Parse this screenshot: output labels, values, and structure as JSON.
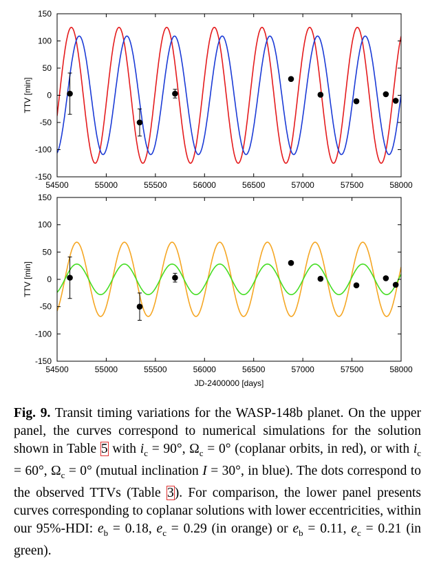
{
  "chart_data": [
    {
      "type": "line",
      "panel": "upper",
      "xlabel": "",
      "ylabel": "TTV [min]",
      "xlim": [
        54500,
        58000
      ],
      "ylim": [
        -150,
        150
      ],
      "xticks": [
        54500,
        55000,
        55500,
        56000,
        56500,
        57000,
        57500,
        58000
      ],
      "yticks": [
        -150,
        -100,
        -50,
        0,
        50,
        100,
        150
      ],
      "series": [
        {
          "name": "",
          "color": "#e41a1c",
          "model": {
            "amplitude": 125,
            "period": 485,
            "peak_x": 54645
          }
        },
        {
          "name": "",
          "color": "#1a3ad6",
          "model": {
            "amplitude": 109,
            "period": 485,
            "peak_x": 54725
          }
        }
      ],
      "points": [
        {
          "x": 54630,
          "y": 3,
          "err": 38
        },
        {
          "x": 55340,
          "y": -50,
          "err": 25
        },
        {
          "x": 55700,
          "y": 3,
          "err": 8
        },
        {
          "x": 56880,
          "y": 30,
          "err": 0
        },
        {
          "x": 57180,
          "y": 1,
          "err": 0
        },
        {
          "x": 57545,
          "y": -11,
          "err": 0
        },
        {
          "x": 57845,
          "y": 2,
          "err": 0
        },
        {
          "x": 57945,
          "y": -10,
          "err": 0
        }
      ]
    },
    {
      "type": "line",
      "panel": "lower",
      "xlabel": "JD-2400000 [days]",
      "ylabel": "TTV [min]",
      "xlim": [
        54500,
        58000
      ],
      "ylim": [
        -150,
        150
      ],
      "xticks": [
        54500,
        55000,
        55500,
        56000,
        56500,
        57000,
        57500,
        58000
      ],
      "yticks": [
        -150,
        -100,
        -50,
        0,
        50,
        100,
        150
      ],
      "series": [
        {
          "name": "",
          "color": "#f5a623",
          "model": {
            "amplitude": 68,
            "period": 485,
            "peak_x": 54700
          }
        },
        {
          "name": "",
          "color": "#44dd22",
          "model": {
            "amplitude": 28,
            "period": 485,
            "peak_x": 54700
          }
        }
      ],
      "points": [
        {
          "x": 54630,
          "y": 3,
          "err": 38
        },
        {
          "x": 55340,
          "y": -50,
          "err": 25
        },
        {
          "x": 55700,
          "y": 3,
          "err": 8
        },
        {
          "x": 56880,
          "y": 30,
          "err": 0
        },
        {
          "x": 57180,
          "y": 1,
          "err": 0
        },
        {
          "x": 57545,
          "y": -11,
          "err": 0
        },
        {
          "x": 57845,
          "y": 2,
          "err": 0
        },
        {
          "x": 57945,
          "y": -10,
          "err": 0
        }
      ]
    }
  ],
  "caption": {
    "label": "Fig. 9.",
    "t1": " Transit timing variations for the WASP-148b planet. On the upper panel, the curves correspond to numerical simulations for the solution shown in Table ",
    "ref1": "5",
    "t2": " with ",
    "t3": " = 90°, Ω",
    "t4": " = 0° (coplanar orbits, in red), or with ",
    "t5": " = 60°, Ω",
    "t6": " = 0° (mutual inclination ",
    "t7": " = 30°, in blue). The dots correspond to the observed TTVs (Table ",
    "ref2": "3",
    "t8": "). For comparison, the lower panel presents curves corresponding to coplanar solutions with lower eccentricities, within our 95%-HDI: ",
    "t9": " = 0.18, ",
    "t10": " = 0.29 (in orange) or ",
    "t11": " = 0.11, ",
    "t12": " = 0.21 (in green).",
    "var_i": "i",
    "var_e": "e",
    "var_I": "I",
    "sub_c": "c",
    "sub_b": "b"
  }
}
